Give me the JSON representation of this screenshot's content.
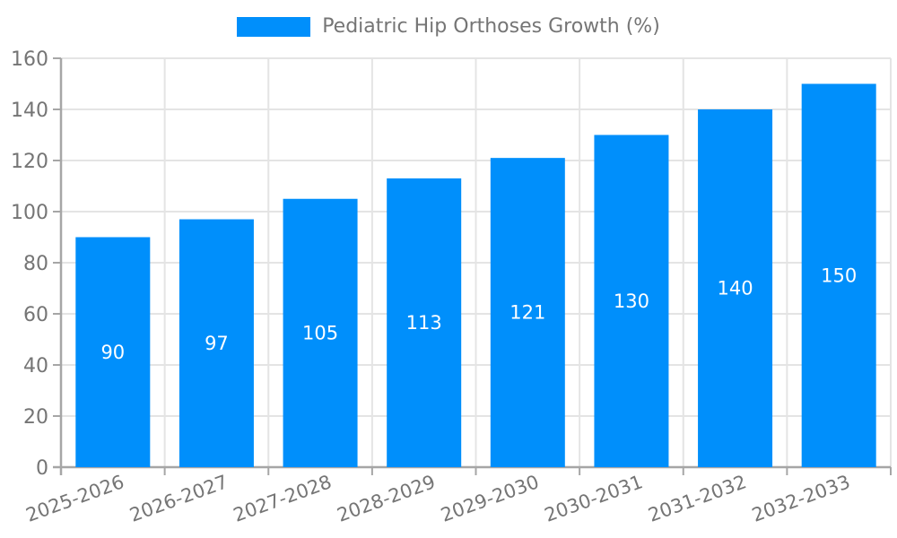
{
  "chart_data": {
    "type": "bar",
    "title": "Pediatric Hip Orthoses Growth (%)",
    "categories": [
      "2025-2026",
      "2026-2027",
      "2027-2028",
      "2028-2029",
      "2029-2030",
      "2030-2031",
      "2031-2032",
      "2032-2033"
    ],
    "values": [
      90,
      97,
      105,
      113,
      121,
      130,
      140,
      150
    ],
    "xlabel": "",
    "ylabel": "",
    "ylim": [
      0,
      160
    ],
    "yticks": [
      0,
      20,
      40,
      60,
      80,
      100,
      120,
      140,
      160
    ],
    "grid": true,
    "legend_position": "top-center",
    "x_label_rotation_deg": -20,
    "colors": {
      "bar": "#008FFB",
      "bar_value_label": "#ffffff",
      "axis_text": "#757575",
      "grid_line": "#e4e4e4",
      "axis_line": "#a6a6a6",
      "legend_swatch": "#008FFB"
    }
  }
}
